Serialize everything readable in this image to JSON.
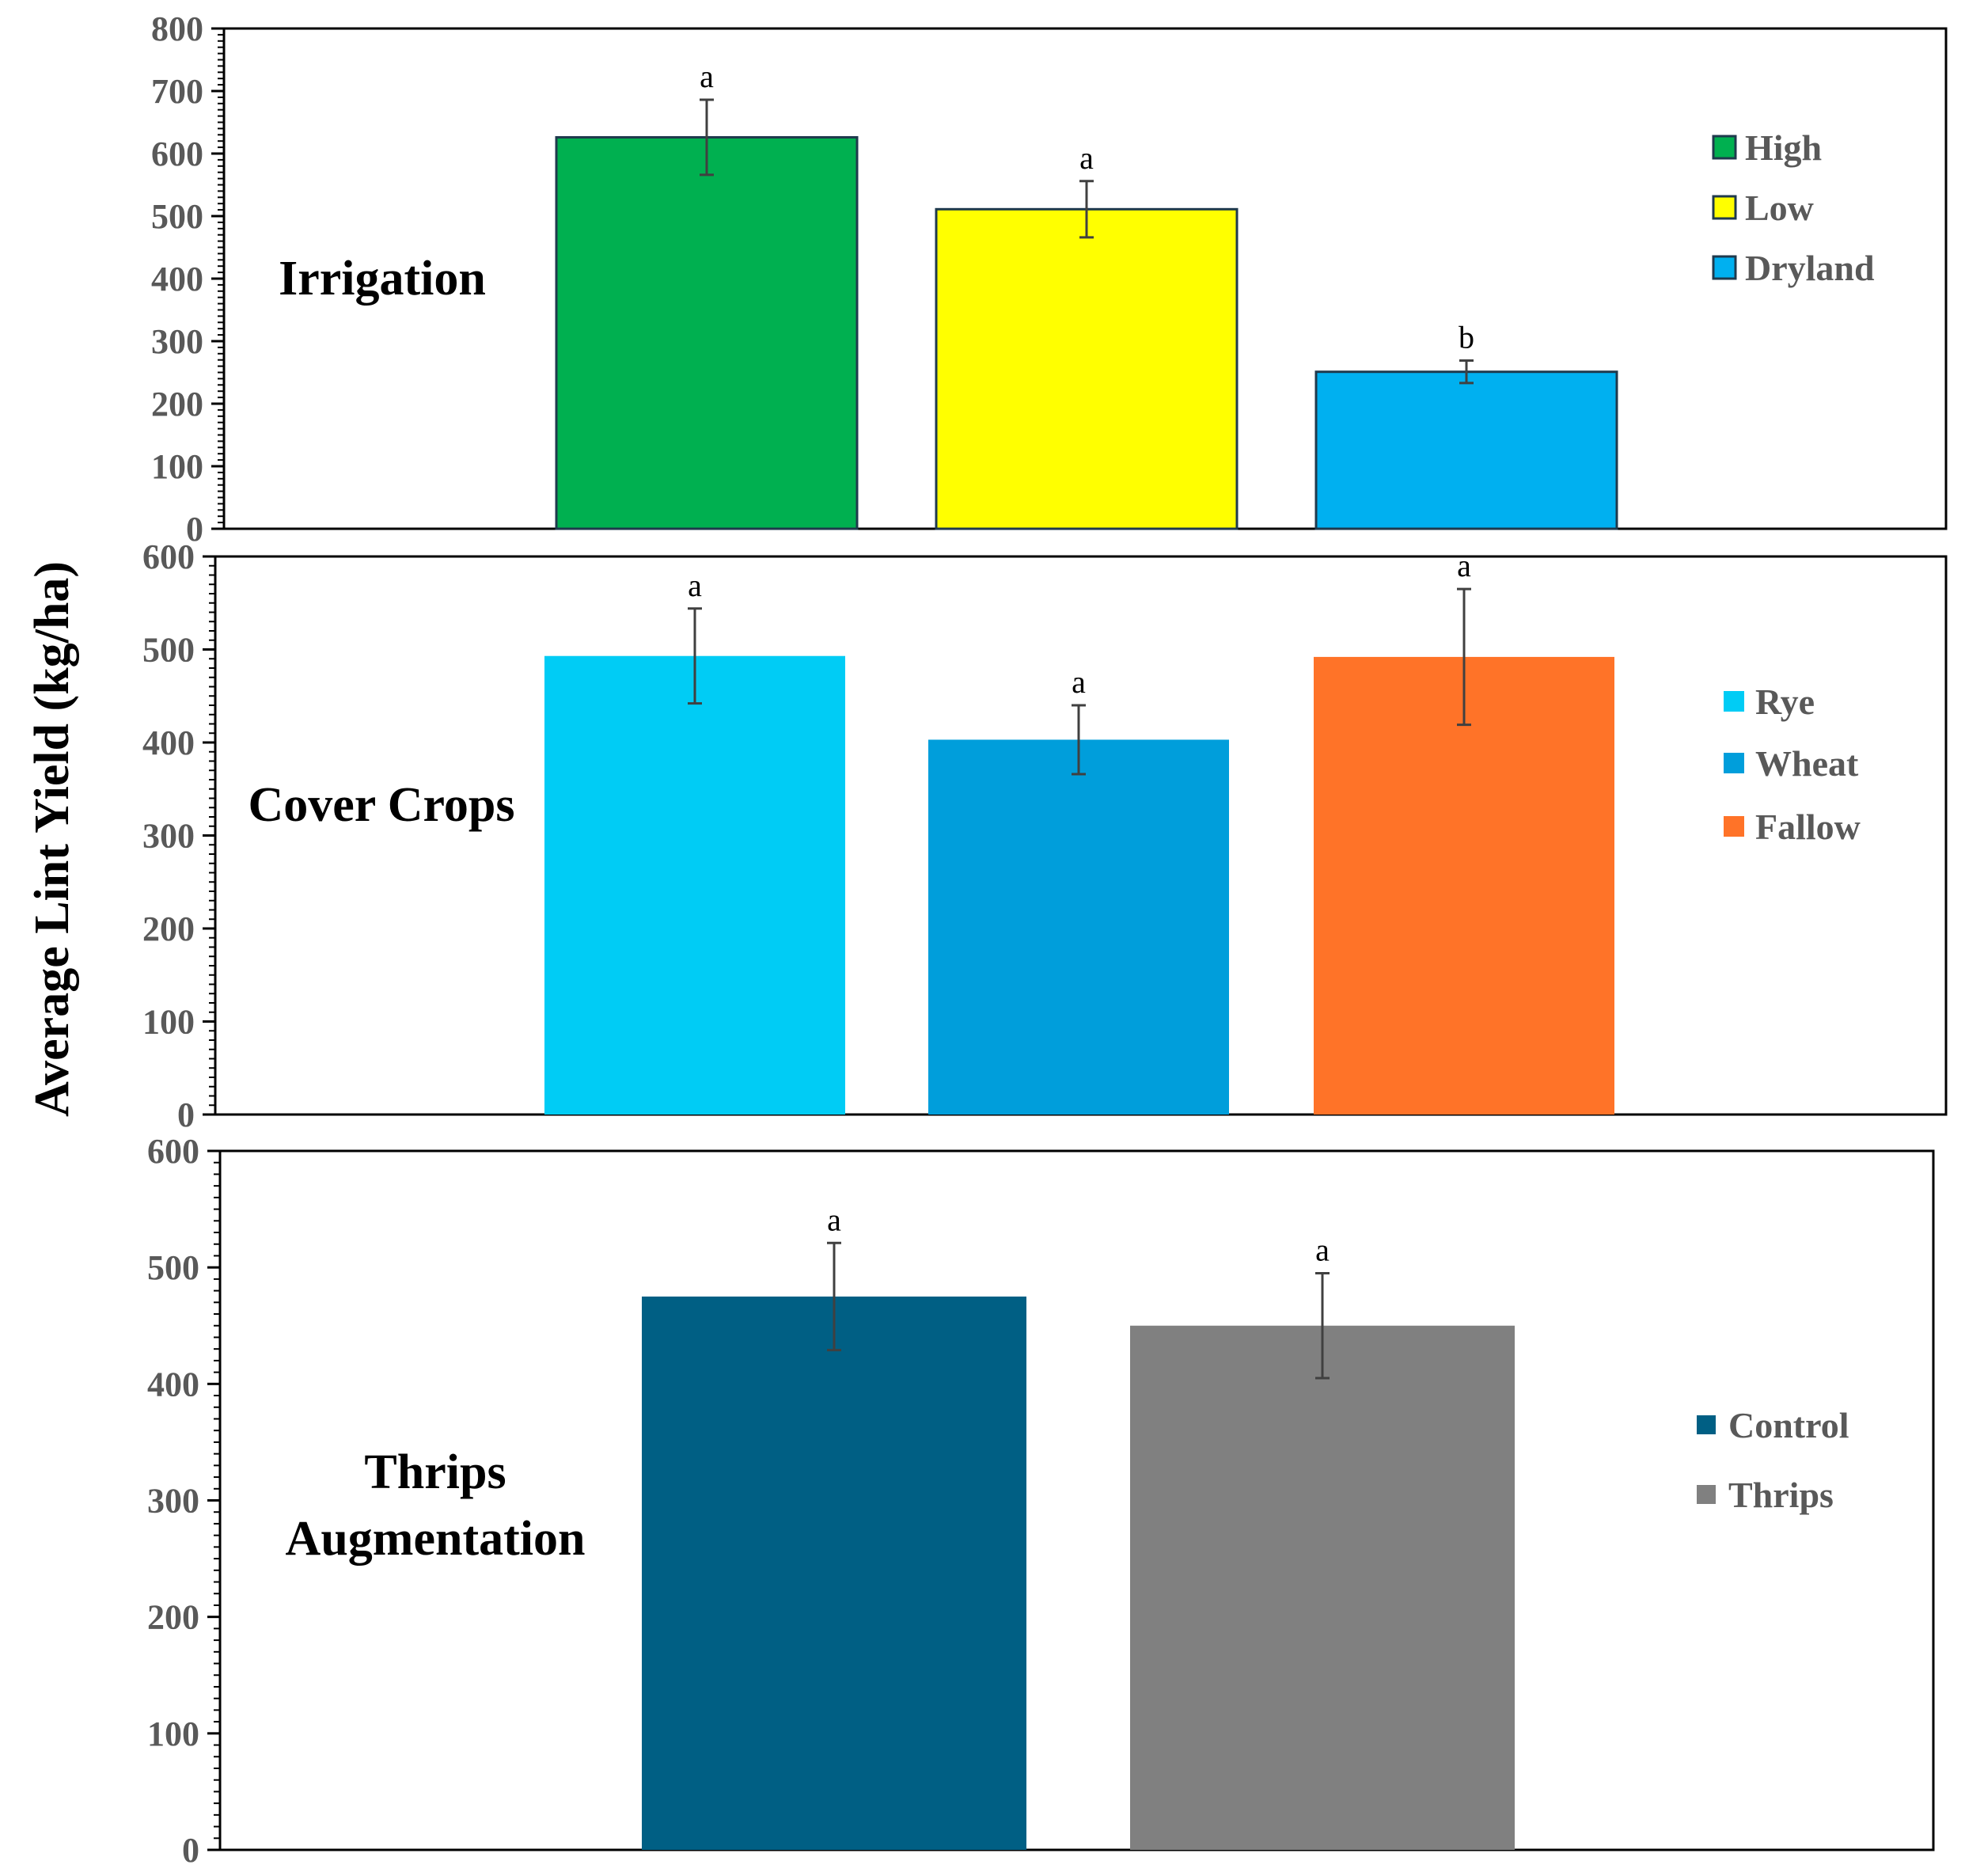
{
  "figure": {
    "ylabel": "Average Lint Yield (kg/ha)"
  },
  "chart_data": [
    {
      "type": "bar",
      "panel_label": [
        "Irrigation"
      ],
      "categories": [
        "High",
        "Low",
        "Dryland"
      ],
      "values": [
        626,
        511,
        251
      ],
      "errors": [
        60,
        45,
        18
      ],
      "significance": [
        "a",
        "a",
        "b"
      ],
      "colors": [
        "#00b050",
        "#ffff00",
        "#00b0f0"
      ],
      "bar_border": "#1f3a4d",
      "ylim": [
        0,
        800
      ],
      "yticks": [
        0,
        100,
        200,
        300,
        400,
        500,
        600,
        700,
        800
      ],
      "legend": [
        "High",
        "Low",
        "Dryland"
      ],
      "legend_position": "top-right"
    },
    {
      "type": "bar",
      "panel_label": [
        "Cover Crops"
      ],
      "categories": [
        "Rye",
        "Wheat",
        "Fallow"
      ],
      "values": [
        493,
        403,
        492
      ],
      "errors": [
        51,
        37,
        73
      ],
      "significance": [
        "a",
        "a",
        "a"
      ],
      "colors": [
        "#00ccf5",
        "#009edb",
        "#ff7328"
      ],
      "bar_border": "",
      "ylim": [
        0,
        600
      ],
      "yticks": [
        0,
        100,
        200,
        300,
        400,
        500,
        600
      ],
      "legend": [
        "Rye",
        "Wheat",
        "Fallow"
      ],
      "legend_position": "right"
    },
    {
      "type": "bar",
      "panel_label": [
        "Thrips",
        "Augmentation"
      ],
      "categories": [
        "Control",
        "Thrips"
      ],
      "values": [
        475,
        450
      ],
      "errors": [
        46,
        45
      ],
      "significance": [
        "a",
        "a"
      ],
      "colors": [
        "#005f84",
        "#808080"
      ],
      "bar_border": "",
      "ylim": [
        0,
        600
      ],
      "yticks": [
        0,
        100,
        200,
        300,
        400,
        500,
        600
      ],
      "legend": [
        "Control",
        "Thrips"
      ],
      "legend_position": "right"
    }
  ]
}
